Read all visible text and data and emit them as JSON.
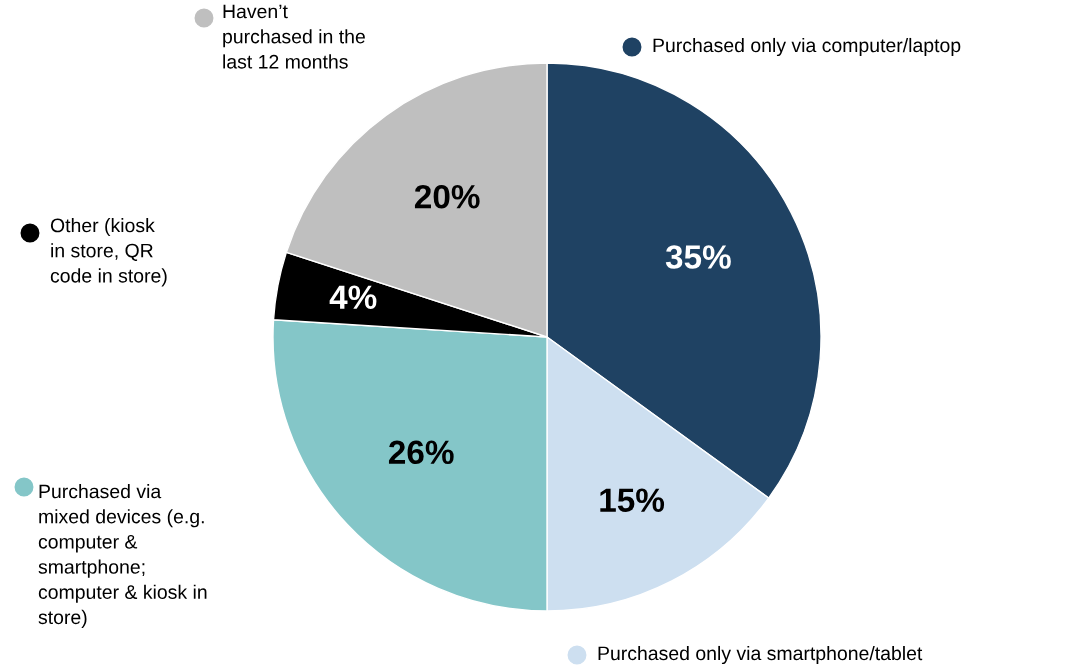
{
  "chart_data": {
    "type": "pie",
    "categories": [
      "Purchased only via computer/laptop",
      "Purchased only via smartphone/tablet",
      "Purchased via\nmixed devices (e.g.\ncomputer &\nsmartphone;\ncomputer & kiosk in\nstore)",
      "Other (kiosk\nin store, QR\ncode in store)",
      "Haven’t\npurchased in the\nlast 12 months"
    ],
    "values": [
      35,
      15,
      26,
      4,
      20
    ],
    "value_labels": [
      "35%",
      "15%",
      "26%",
      "4%",
      "20%"
    ],
    "colors": [
      "#1f4263",
      "#cddff0",
      "#84c6c8",
      "#000000",
      "#bfbfbf"
    ],
    "legend": "left"
  }
}
